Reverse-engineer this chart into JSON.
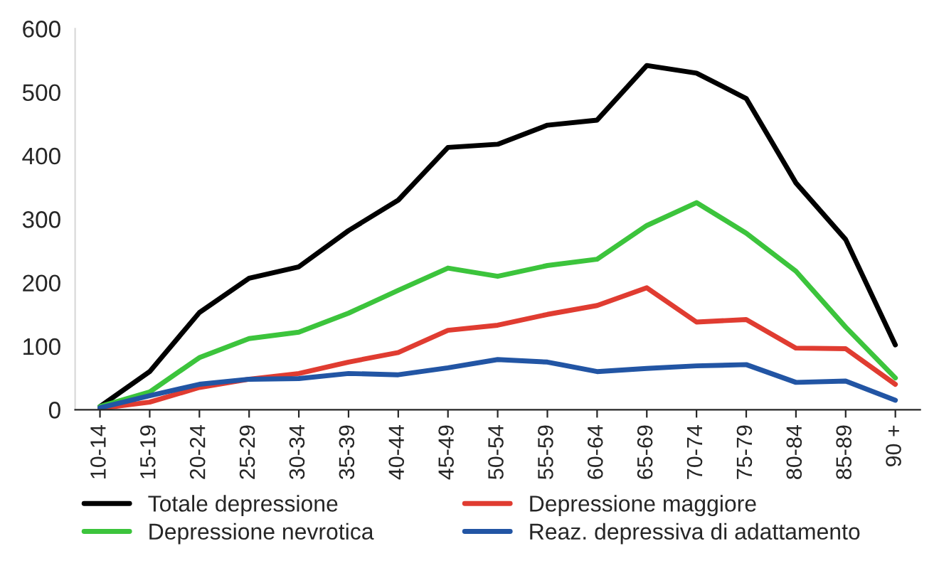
{
  "chart_data": {
    "type": "line",
    "categories": [
      "10-14",
      "15-19",
      "20-24",
      "25-29",
      "30-34",
      "35-39",
      "40-44",
      "45-49",
      "50-54",
      "55-59",
      "60-64",
      "65-69",
      "70-74",
      "75-79",
      "80-84",
      "85-89",
      "90 +"
    ],
    "series": [
      {
        "name": "Totale depressione",
        "color": "#000000",
        "values": [
          5,
          60,
          153,
          207,
          225,
          282,
          330,
          413,
          418,
          448,
          456,
          542,
          530,
          490,
          357,
          268,
          102
        ]
      },
      {
        "name": "Depressione maggiore",
        "color": "#e03c31",
        "values": [
          2,
          12,
          35,
          48,
          57,
          75,
          90,
          125,
          133,
          150,
          164,
          192,
          138,
          142,
          97,
          96,
          40
        ]
      },
      {
        "name": "Depressione nevrotica",
        "color": "#3cc43c",
        "values": [
          5,
          28,
          82,
          112,
          122,
          152,
          188,
          223,
          210,
          227,
          237,
          290,
          326,
          278,
          218,
          130,
          50
        ]
      },
      {
        "name": "Reaz. depressiva di adattamento",
        "color": "#2255a4",
        "values": [
          3,
          22,
          40,
          48,
          49,
          57,
          55,
          66,
          79,
          75,
          60,
          65,
          69,
          71,
          43,
          45,
          15
        ]
      }
    ],
    "ylim": [
      0,
      600
    ],
    "yticks": [
      0,
      100,
      200,
      300,
      400,
      500,
      600
    ],
    "grid": false,
    "legend": "bottom",
    "marker": "none",
    "line_style": "solid"
  }
}
